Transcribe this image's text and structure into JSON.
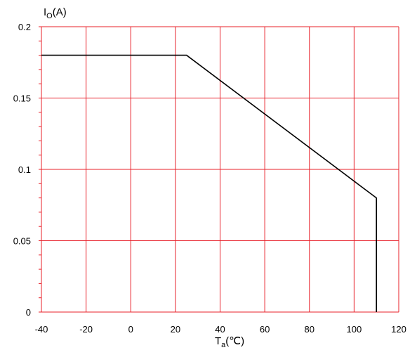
{
  "chart_data": {
    "type": "line",
    "xlabel": {
      "main": "T",
      "sub": "a",
      "unit": "(℃)"
    },
    "ylabel": {
      "main": "I",
      "sub": "O",
      "unit": "(A)"
    },
    "xlim": [
      -40,
      120
    ],
    "ylim": [
      0,
      0.2
    ],
    "x_ticks": [
      -40,
      -20,
      0,
      20,
      40,
      60,
      80,
      100,
      120
    ],
    "y_ticks": [
      0,
      0.05,
      0.1,
      0.15,
      0.2
    ],
    "x_tick_labels": [
      "-40",
      "-20",
      "0",
      "20",
      "40",
      "60",
      "80",
      "100",
      "120"
    ],
    "y_tick_labels": [
      "0",
      "0.05",
      "0.1",
      "0.15",
      "0.2"
    ],
    "y_minor_step": 0.01,
    "grid": true,
    "grid_color": "#e8202a",
    "series": [
      {
        "x": [
          -40,
          25,
          110,
          110
        ],
        "y": [
          0.18,
          0.18,
          0.08,
          0
        ],
        "color": "#000000"
      }
    ]
  }
}
